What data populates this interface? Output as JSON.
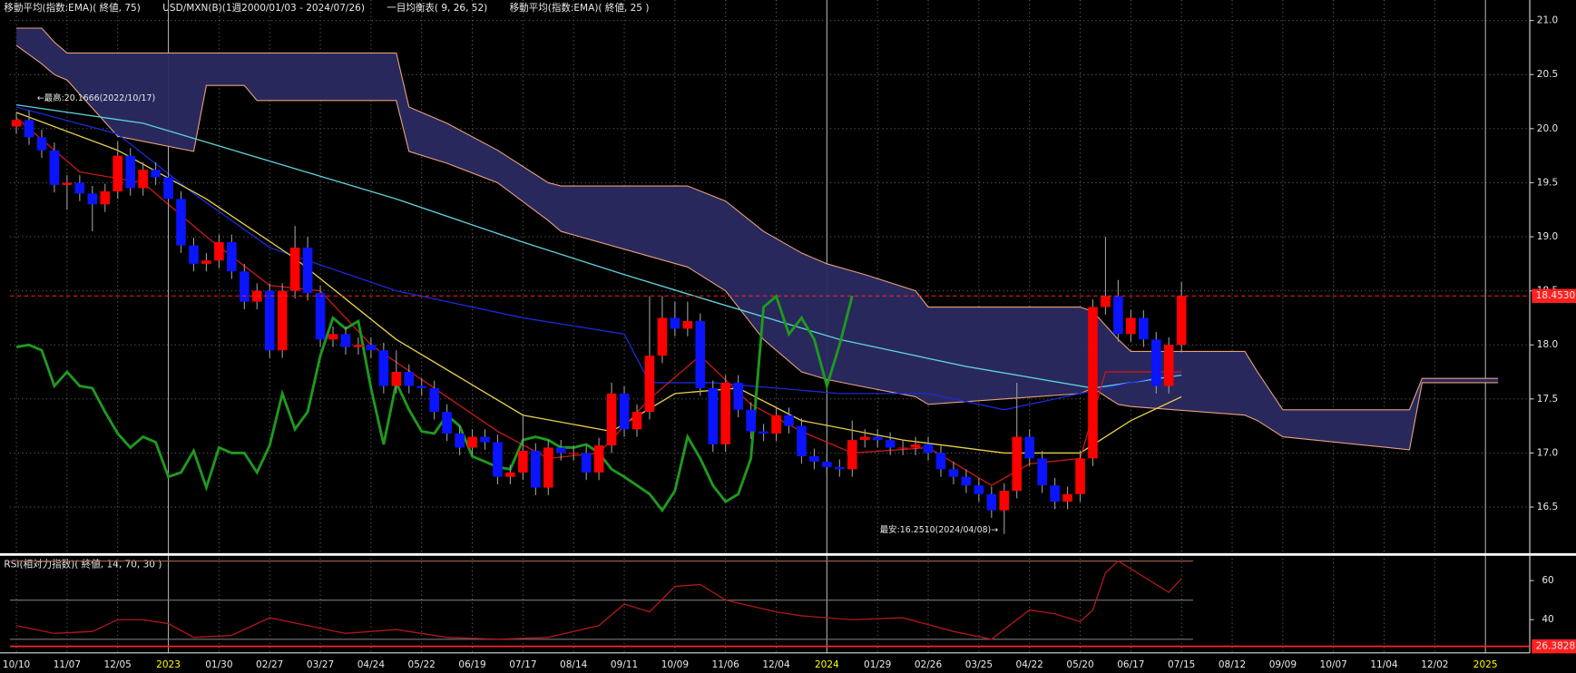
{
  "chart_data": {
    "type": "candlestick",
    "header": [
      "移動平均(指数:EMA)( 終値, 75)",
      "USD/MXN(B)(1週2000/01/03 - 2024/07/26)",
      "一目均衡表( 9, 26, 52)",
      "移動平均(指数:EMA)( 終値, 25 )"
    ],
    "categories": [
      "10/10",
      null,
      null,
      null,
      "11/07",
      null,
      null,
      null,
      "12/05",
      null,
      null,
      null,
      "2023",
      null,
      null,
      null,
      "01/30",
      null,
      null,
      null,
      "02/27",
      null,
      null,
      null,
      "03/27",
      null,
      null,
      null,
      "04/24",
      null,
      null,
      null,
      "05/22",
      null,
      null,
      null,
      "06/19",
      null,
      null,
      null,
      "07/17",
      null,
      null,
      null,
      "08/14",
      null,
      null,
      null,
      "09/11",
      null,
      null,
      null,
      "10/09",
      null,
      null,
      null,
      "11/06",
      null,
      null,
      null,
      "12/04",
      null,
      null,
      null,
      "2024",
      null,
      null,
      null,
      "01/29",
      null,
      null,
      null,
      "02/26",
      null,
      null,
      null,
      "03/25",
      null,
      null,
      null,
      "04/22",
      null,
      null,
      null,
      "05/20",
      null,
      null,
      null,
      "06/17",
      null,
      null,
      null,
      "07/15",
      null,
      null,
      null,
      "08/12",
      null,
      null,
      null,
      "09/09",
      null,
      null,
      null,
      "10/07",
      null,
      null,
      null,
      "11/04",
      null,
      null,
      null,
      "12/02",
      null,
      null,
      null,
      "2025",
      null,
      null,
      null
    ],
    "ylim": [
      16.08,
      21.19
    ],
    "yticks": [
      16.5,
      {
        "value": 17,
        "label": "17.0"
      },
      17.5,
      {
        "value": 18,
        "label": "18.0"
      },
      18.5,
      {
        "value": 19,
        "label": "19.0"
      },
      19.5,
      {
        "value": 20,
        "label": "20.0"
      },
      20.5,
      {
        "value": 21,
        "label": "21.0"
      }
    ],
    "grid": true,
    "up_color": "#ff0000",
    "down_color": "#0a14ff",
    "wick_color": "#9a9a9a",
    "candles": {
      "open": [
        20.02,
        20.08,
        19.92,
        19.8,
        19.48,
        19.5,
        19.4,
        19.3,
        19.42,
        19.75,
        19.45,
        19.62,
        19.55,
        19.35,
        18.92,
        18.75,
        18.78,
        18.95,
        18.68,
        18.4,
        18.5,
        17.95,
        18.5,
        18.9,
        18.48,
        18.05,
        18.1,
        17.98,
        18.0,
        17.95,
        17.62,
        17.75,
        17.62,
        17.6,
        17.38,
        17.18,
        17.05,
        17.15,
        17.1,
        16.78,
        16.82,
        17.02,
        16.68,
        17.05,
        17.0,
        17.0,
        16.82,
        17.07,
        17.55,
        17.22,
        17.38,
        17.9,
        18.25,
        18.15,
        18.22,
        17.6,
        17.08,
        17.65,
        17.4,
        17.2,
        17.18,
        17.35,
        17.25,
        16.97,
        16.92,
        16.87,
        16.85,
        17.12,
        17.15,
        17.12,
        17.05,
        17.05,
        17.08,
        17.0,
        16.85,
        16.78,
        16.7,
        16.62,
        16.47,
        16.65,
        17.15,
        16.95,
        16.7,
        16.55,
        16.62,
        16.95,
        18.35,
        18.45,
        18.1,
        18.25,
        18.05,
        17.62,
        18.0
      ],
      "high": [
        20.15,
        20.1666,
        19.99,
        19.87,
        19.57,
        19.57,
        19.47,
        19.49,
        19.88,
        19.82,
        19.69,
        19.69,
        19.62,
        19.42,
        18.99,
        18.85,
        19.02,
        19.02,
        18.75,
        18.57,
        18.57,
        18.57,
        19.1,
        19.0,
        18.55,
        18.17,
        18.17,
        18.07,
        18.07,
        18.02,
        17.95,
        17.82,
        17.69,
        17.67,
        17.45,
        17.25,
        17.22,
        17.22,
        17.17,
        16.89,
        17.35,
        17.09,
        17.12,
        17.12,
        17.07,
        17.07,
        17.14,
        17.65,
        17.62,
        17.45,
        18.45,
        18.45,
        18.4,
        18.4,
        18.29,
        17.67,
        17.72,
        17.72,
        17.47,
        17.27,
        17.42,
        17.42,
        17.32,
        17.04,
        16.99,
        16.94,
        17.3,
        17.22,
        17.22,
        17.19,
        17.12,
        17.15,
        17.15,
        17.07,
        16.92,
        16.85,
        16.77,
        16.69,
        16.72,
        17.65,
        17.22,
        17.02,
        16.77,
        16.69,
        17.02,
        18.42,
        19.0,
        18.6,
        18.32,
        18.32,
        18.12,
        18.07,
        18.58
      ],
      "low": [
        19.95,
        19.85,
        19.73,
        19.41,
        19.25,
        19.33,
        19.05,
        19.23,
        19.35,
        19.38,
        19.38,
        19.48,
        19.28,
        18.85,
        18.68,
        18.68,
        18.71,
        18.61,
        18.33,
        18.33,
        17.88,
        17.88,
        18.43,
        18.41,
        17.98,
        17.98,
        17.91,
        17.91,
        17.88,
        17.55,
        17.55,
        17.55,
        17.53,
        17.31,
        17.11,
        16.98,
        16.98,
        17.03,
        16.71,
        16.71,
        16.75,
        16.61,
        16.61,
        16.93,
        16.93,
        16.75,
        16.75,
        17.0,
        17.15,
        17.15,
        17.31,
        17.83,
        18.08,
        18.08,
        17.53,
        17.01,
        17.01,
        17.33,
        17.13,
        17.11,
        17.11,
        17.18,
        16.9,
        16.85,
        16.8,
        16.78,
        16.78,
        17.05,
        17.05,
        16.98,
        16.98,
        16.98,
        16.93,
        16.78,
        16.71,
        16.63,
        16.55,
        16.4,
        16.251,
        16.58,
        16.88,
        16.63,
        16.48,
        16.48,
        16.55,
        16.88,
        18.28,
        18.03,
        18.03,
        17.98,
        17.55,
        17.55,
        17.93
      ],
      "close": [
        20.08,
        19.92,
        19.8,
        19.48,
        19.5,
        19.4,
        19.3,
        19.42,
        19.75,
        19.45,
        19.62,
        19.55,
        19.35,
        18.92,
        18.75,
        18.78,
        18.95,
        18.68,
        18.4,
        18.5,
        17.95,
        18.5,
        18.9,
        18.48,
        18.05,
        18.1,
        17.98,
        18.0,
        17.95,
        17.62,
        17.75,
        17.62,
        17.6,
        17.38,
        17.18,
        17.05,
        17.15,
        17.1,
        16.78,
        16.82,
        17.02,
        16.68,
        17.05,
        17.0,
        17.0,
        16.82,
        17.07,
        17.55,
        17.22,
        17.38,
        17.9,
        18.25,
        18.15,
        18.22,
        17.6,
        17.08,
        17.65,
        17.4,
        17.2,
        17.18,
        17.35,
        17.25,
        16.97,
        16.92,
        16.87,
        16.85,
        17.12,
        17.15,
        17.12,
        17.05,
        17.05,
        17.08,
        17.0,
        16.85,
        16.78,
        16.7,
        16.62,
        16.47,
        16.65,
        17.15,
        16.95,
        16.7,
        16.55,
        16.62,
        16.95,
        18.35,
        18.45,
        18.1,
        18.25,
        18.05,
        17.62,
        18.0,
        18.453
      ]
    },
    "cloud": {
      "color": "#2a2a62",
      "line_color": "#e8a07a",
      "x": [
        0,
        2,
        3,
        4,
        8,
        14,
        15,
        18,
        19,
        30,
        31,
        34,
        38,
        42,
        43,
        53,
        56,
        59,
        62,
        64,
        67,
        71,
        72,
        84,
        85,
        87,
        88,
        97,
        98,
        100,
        110,
        111,
        117
      ],
      "span_b": [
        20.93,
        20.93,
        20.8,
        20.7,
        20.7,
        20.7,
        20.7,
        20.7,
        20.7,
        20.7,
        20.2,
        20.05,
        19.8,
        19.5,
        19.47,
        19.47,
        19.33,
        19.05,
        18.85,
        18.75,
        18.65,
        18.5,
        18.35,
        18.35,
        18.31,
        18.05,
        17.94,
        17.94,
        17.75,
        17.4,
        17.4,
        17.69,
        17.69
      ],
      "span_a": [
        20.77,
        20.6,
        20.5,
        20.45,
        19.93,
        19.79,
        20.4,
        20.4,
        20.26,
        20.26,
        19.79,
        19.68,
        19.5,
        19.15,
        19.05,
        18.72,
        18.5,
        18.05,
        17.75,
        17.68,
        17.61,
        17.52,
        17.45,
        17.55,
        17.6,
        17.45,
        17.43,
        17.35,
        17.3,
        17.15,
        17.03,
        17.65,
        17.65
      ]
    },
    "lines": [
      {
        "color": "#5fd0d8",
        "x": [
          0,
          10,
          20,
          30,
          40,
          48,
          55,
          65,
          75,
          85,
          92
        ],
        "values": [
          20.22,
          20.05,
          19.7,
          19.35,
          18.95,
          18.65,
          18.4,
          18.05,
          17.8,
          17.6,
          17.72
        ]
      },
      {
        "color": "#1a2ad8",
        "x": [
          0,
          8,
          14,
          20,
          30,
          40,
          48,
          50,
          55,
          65,
          72,
          78,
          84,
          92
        ],
        "values": [
          20.2,
          19.95,
          19.4,
          18.9,
          18.5,
          18.25,
          18.1,
          17.65,
          17.65,
          17.55,
          17.55,
          17.4,
          17.55,
          17.75
        ]
      },
      {
        "color": "#e8d04a",
        "x": [
          0,
          8,
          15,
          22,
          30,
          40,
          47,
          52,
          57,
          62,
          70,
          78,
          84,
          88,
          92
        ],
        "values": [
          20.15,
          19.8,
          19.35,
          18.8,
          18.05,
          17.35,
          17.2,
          17.55,
          17.6,
          17.3,
          17.12,
          17.0,
          17.0,
          17.3,
          17.52
        ]
      },
      {
        "color": "#c81818",
        "x": [
          0,
          5,
          10,
          15,
          20,
          24,
          28,
          33,
          38,
          42,
          46,
          50,
          54,
          58,
          62,
          66,
          72,
          77,
          80,
          84,
          86,
          92
        ],
        "values": [
          20.1,
          19.6,
          19.5,
          19.0,
          18.55,
          18.5,
          18.0,
          17.6,
          17.2,
          16.95,
          17.0,
          17.5,
          17.9,
          17.45,
          17.2,
          17.0,
          17.05,
          16.7,
          16.9,
          16.95,
          17.75,
          17.75
        ]
      },
      {
        "color": "#1e9a1e",
        "x": [
          0,
          1,
          2,
          3,
          4,
          5,
          6,
          7,
          8,
          9,
          10,
          11,
          12,
          13,
          14,
          15,
          16,
          17,
          18,
          19,
          20,
          21,
          22,
          23,
          24,
          25,
          26,
          27,
          28,
          29,
          30,
          31,
          32,
          33,
          34,
          35,
          36,
          37,
          38,
          39,
          40,
          41,
          42,
          43,
          44,
          45,
          46,
          47,
          48,
          49,
          50,
          51,
          52,
          53,
          54,
          55,
          56,
          57,
          58,
          59,
          60,
          61,
          62,
          63,
          64,
          65,
          66
        ],
        "values": [
          17.98,
          18.0,
          17.95,
          17.62,
          17.75,
          17.62,
          17.6,
          17.38,
          17.18,
          17.05,
          17.15,
          17.1,
          16.78,
          16.82,
          17.02,
          16.68,
          17.05,
          17.0,
          17.0,
          16.82,
          17.07,
          17.55,
          17.22,
          17.38,
          17.9,
          18.25,
          18.15,
          18.22,
          17.6,
          17.08,
          17.65,
          17.4,
          17.2,
          17.18,
          17.35,
          17.25,
          16.97,
          16.92,
          16.87,
          16.85,
          17.12,
          17.15,
          17.12,
          17.05,
          17.05,
          17.08,
          17.0,
          16.85,
          16.78,
          16.7,
          16.62,
          16.47,
          16.65,
          17.15,
          16.95,
          16.7,
          16.55,
          16.62,
          16.95,
          18.35,
          18.45,
          18.1,
          18.25,
          18.05,
          17.62,
          18.0,
          18.453
        ]
      }
    ],
    "last_price": {
      "value": 18.453,
      "label": "18.4530",
      "color": "#ff2020"
    },
    "high_annotation": "←最高:20.1666(2022/10/17)",
    "low_annotation": "最安:16.2510(2024/04/08)→",
    "rsi": {
      "title": "RSI(相対力指数)( 終値, 14, 70, 30 )",
      "color": "#b01818",
      "ylim": [
        25.6,
        71.8
      ],
      "yticks": [
        40,
        60
      ],
      "levels": [
        70,
        50,
        30
      ],
      "x": [
        0,
        3,
        6,
        8,
        10,
        12,
        14,
        17,
        20,
        23,
        26,
        30,
        34,
        38,
        42,
        46,
        48,
        50,
        52,
        54,
        56,
        58,
        60,
        62,
        66,
        70,
        74,
        77,
        80,
        82,
        84,
        85,
        86,
        87,
        88,
        90,
        91,
        92
      ],
      "values": [
        37,
        33,
        34,
        40,
        40,
        38,
        31,
        32,
        41,
        37,
        33,
        35,
        31,
        30,
        31,
        37,
        48,
        44,
        57,
        58,
        50,
        47,
        44,
        42,
        40,
        41,
        34,
        30,
        45,
        43,
        39,
        45,
        64,
        70,
        66,
        58,
        54,
        61
      ],
      "marker": {
        "value": 26.3828,
        "label": "26.3828",
        "color": "#ff2020"
      }
    }
  }
}
